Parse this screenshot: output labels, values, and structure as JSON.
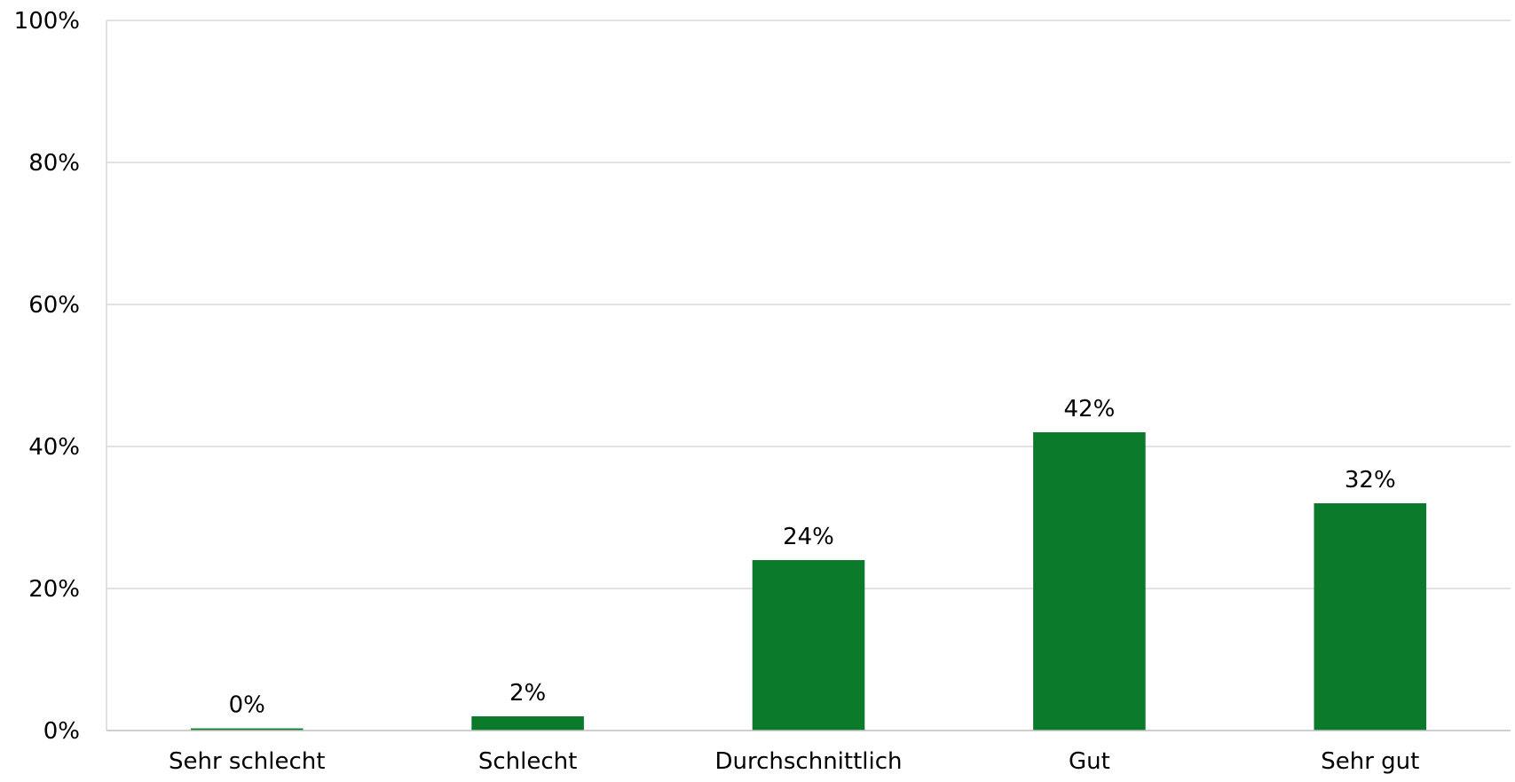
{
  "chart_data": {
    "type": "bar",
    "title": "",
    "xlabel": "",
    "ylabel": "",
    "categories": [
      "Sehr schlecht",
      "Schlecht",
      "Durchschnittlich",
      "Gut",
      "Sehr gut"
    ],
    "values": [
      0.3,
      2,
      24,
      42,
      32
    ],
    "data_labels": [
      "0%",
      "2%",
      "24%",
      "42%",
      "32%"
    ],
    "ylim": [
      0,
      100
    ],
    "yticks": [
      0,
      20,
      40,
      60,
      80,
      100
    ],
    "ytick_labels": [
      "0%",
      "20%",
      "40%",
      "60%",
      "80%",
      "100%"
    ],
    "grid": true,
    "legend": "none",
    "bar_color": "#0b7b2b"
  }
}
